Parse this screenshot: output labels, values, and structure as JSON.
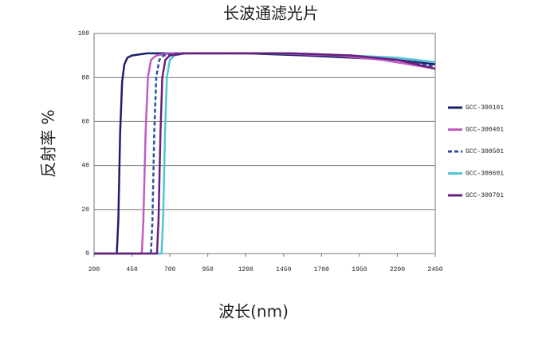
{
  "chart_data": {
    "type": "line",
    "title": "长波通滤光片",
    "x_label": "波长(nm)",
    "y_label": "反射率 %",
    "xlim": [
      200,
      2450
    ],
    "xticks": [
      200,
      450,
      700,
      950,
      1200,
      1450,
      1700,
      1950,
      2200,
      2450
    ],
    "ylim": [
      0,
      100
    ],
    "yticks": [
      0,
      20,
      40,
      60,
      80,
      100
    ],
    "grid": true,
    "series": [
      {
        "name": "GCC-300101",
        "color": "#1c1f6b",
        "dashed": false,
        "x": [
          200,
          350,
          360,
          372,
          385,
          400,
          420,
          450,
          550,
          800,
          1200,
          1600,
          1900,
          2200,
          2450
        ],
        "values": [
          0,
          0,
          15,
          55,
          78,
          86,
          89,
          90,
          91,
          91,
          91,
          90,
          89,
          88,
          86
        ]
      },
      {
        "name": "GCC-300401",
        "color": "#c05cc4",
        "dashed": false,
        "x": [
          200,
          515,
          525,
          540,
          555,
          575,
          610,
          700,
          1000,
          1400,
          1800,
          2100,
          2450
        ],
        "values": [
          0,
          0,
          15,
          55,
          80,
          88,
          90,
          91,
          91,
          91,
          90,
          88,
          84
        ]
      },
      {
        "name": "GCC-300501",
        "color": "#2f4f9c",
        "dashed": true,
        "x": [
          200,
          575,
          585,
          597,
          610,
          630,
          660,
          750,
          1100,
          1500,
          1900,
          2200,
          2450
        ],
        "values": [
          0,
          0,
          15,
          55,
          80,
          88,
          90,
          91,
          91,
          91,
          90,
          88,
          85
        ]
      },
      {
        "name": "GCC-300601",
        "color": "#4fc6d6",
        "dashed": false,
        "x": [
          200,
          645,
          655,
          668,
          680,
          700,
          730,
          800,
          1100,
          1500,
          1900,
          2200,
          2450
        ],
        "values": [
          0,
          0,
          15,
          55,
          80,
          88,
          90,
          91,
          91,
          91,
          90,
          89,
          87
        ]
      },
      {
        "name": "GCC-300701",
        "color": "#6b1d7c",
        "dashed": false,
        "x": [
          200,
          615,
          625,
          638,
          650,
          670,
          700,
          800,
          1100,
          1500,
          1900,
          2200,
          2450
        ],
        "values": [
          0,
          0,
          15,
          55,
          80,
          88,
          90,
          91,
          91,
          91,
          90,
          88,
          84
        ]
      }
    ]
  }
}
